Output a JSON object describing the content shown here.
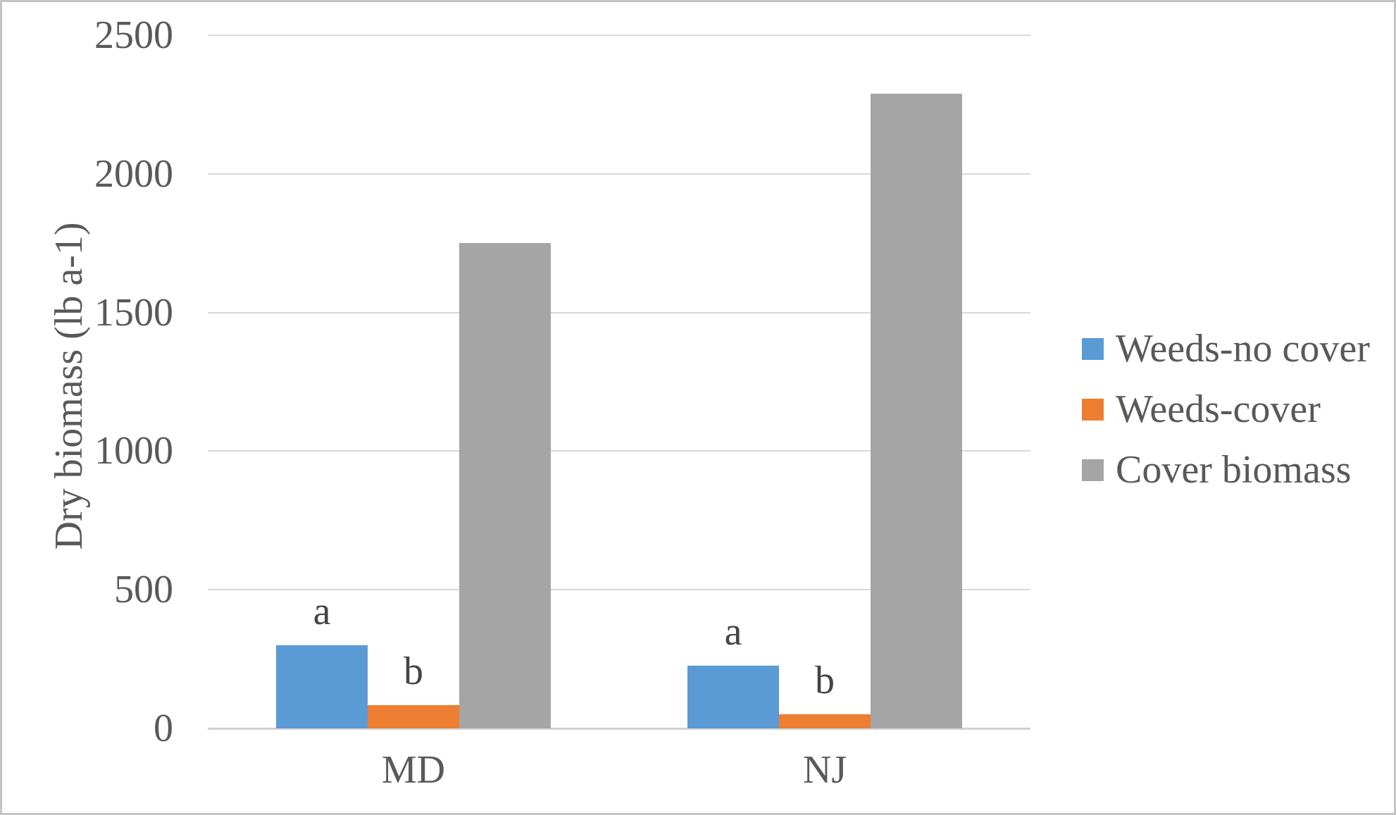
{
  "chart_data": {
    "type": "bar",
    "title": "",
    "categories": [
      "MD",
      "NJ"
    ],
    "series": [
      {
        "name": "Weeds-no cover",
        "color": "#5B9BD5",
        "values": [
          300,
          225
        ]
      },
      {
        "name": "Weeds-cover",
        "color": "#ED7D31",
        "values": [
          85,
          50
        ]
      },
      {
        "name": "Cover biomass",
        "color": "#A5A5A5",
        "values": [
          1750,
          2290
        ]
      }
    ],
    "annotations": [
      {
        "category": "MD",
        "series": "Weeds-no cover",
        "text": "a"
      },
      {
        "category": "MD",
        "series": "Weeds-cover",
        "text": "b"
      },
      {
        "category": "NJ",
        "series": "Weeds-no cover",
        "text": "a"
      },
      {
        "category": "NJ",
        "series": "Weeds-cover",
        "text": "b"
      }
    ],
    "xlabel": "",
    "ylabel": "Dry biomass (lb a-1)",
    "ylim": [
      0,
      2500
    ],
    "yticks": [
      0,
      500,
      1000,
      1500,
      2000,
      2500
    ],
    "grid": true,
    "legend_position": "right",
    "colors": {
      "text": "#595959",
      "gridline": "#D9D9D9",
      "axis_line": "#D2D2D2",
      "annotation_text": "#444444",
      "background": "#FFFFFF",
      "frame_border": "#C4C4C4"
    }
  }
}
